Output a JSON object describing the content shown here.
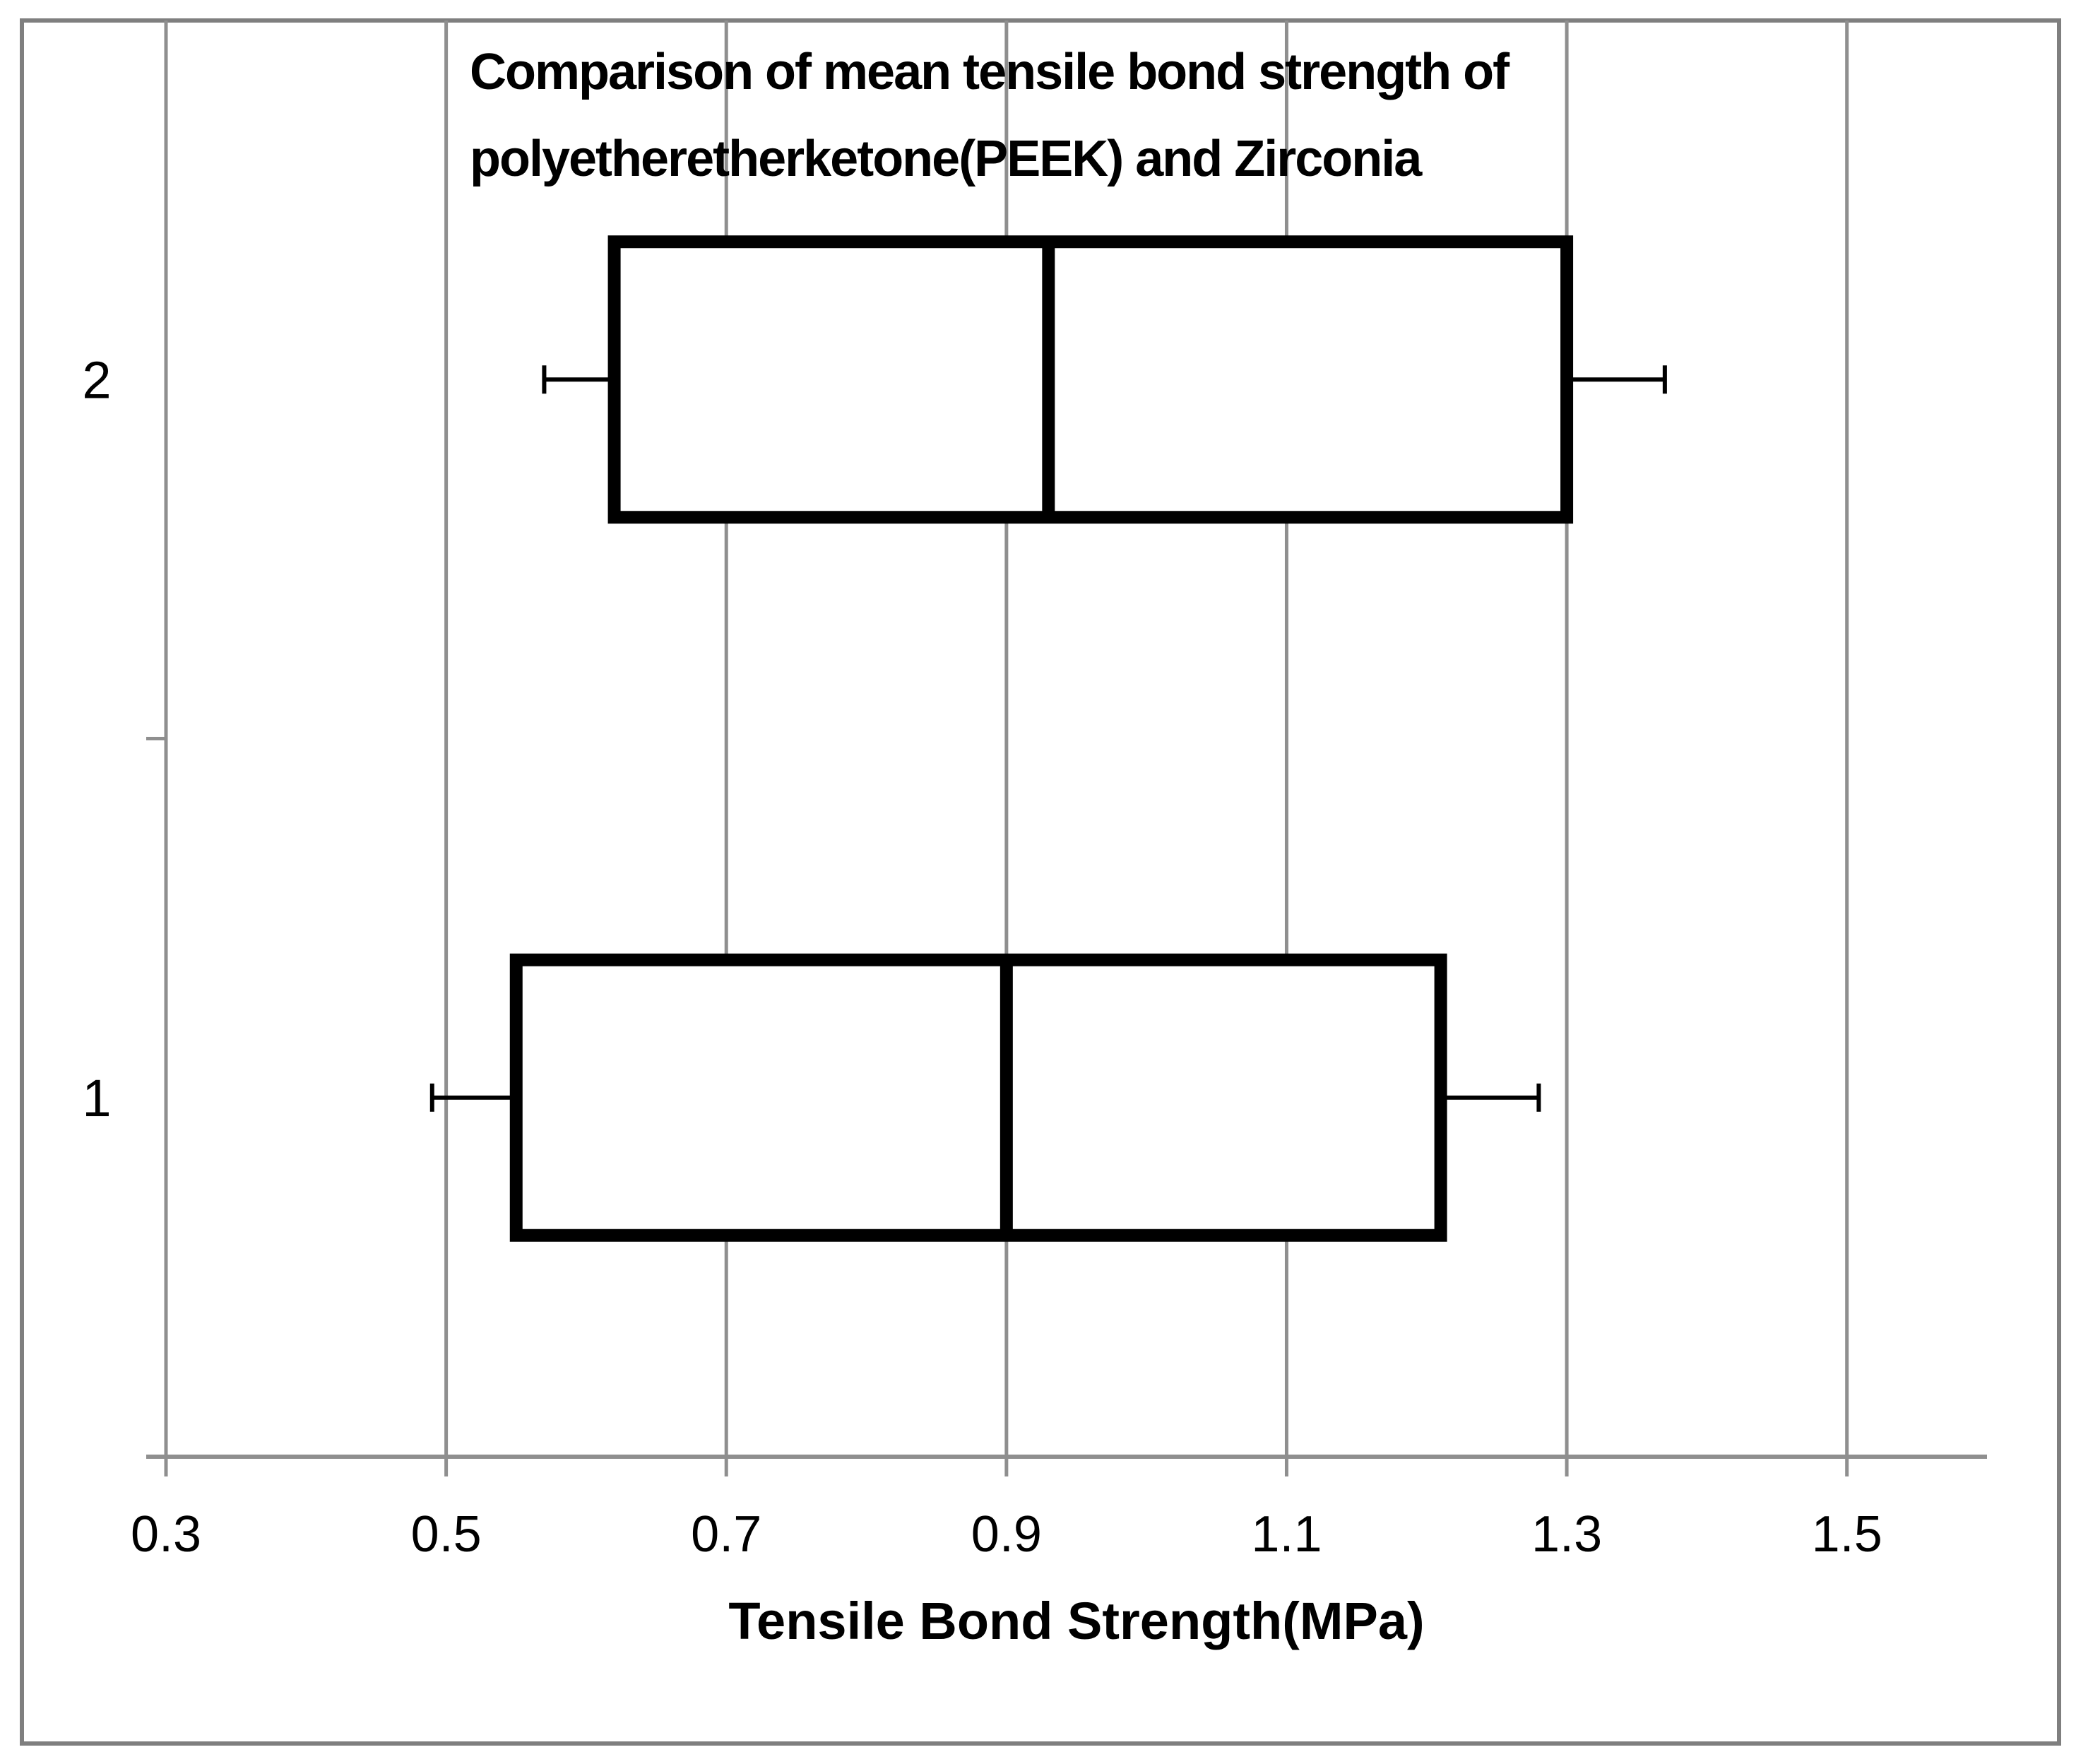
{
  "chart_data": {
    "type": "boxplot",
    "orientation": "horizontal",
    "title": "Comparison of mean tensile bond strength of polyetheretherketone(PEEK) and Zirconia",
    "title_lines": [
      "Comparison of mean tensile bond strength of",
      "polyetheretherketone(PEEK) and Zirconia"
    ],
    "xlabel": "Tensile Bond Strength(MPa)",
    "ylabel": "",
    "categories": [
      "1",
      "2"
    ],
    "series": [
      {
        "name": "1",
        "min": 0.49,
        "q1": 0.55,
        "median": 0.9,
        "q3": 1.21,
        "max": 1.28
      },
      {
        "name": "2",
        "min": 0.57,
        "q1": 0.62,
        "median": 0.93,
        "q3": 1.3,
        "max": 1.37
      }
    ],
    "xlim": [
      0.3,
      1.6
    ],
    "xticks": [
      0.3,
      0.5,
      0.7,
      0.9,
      1.1,
      1.3,
      1.5
    ],
    "xtick_labels": [
      "0.3",
      "0.5",
      "0.7",
      "0.9",
      "1.1",
      "1.3",
      "1.5"
    ],
    "grid": "vertical-major",
    "legend": "none",
    "colors": {
      "box_stroke": "#000000",
      "box_fill": "#ffffff",
      "gridline": "#8f8f8f",
      "axis": "#8f8f8f",
      "figure_border": "#7f7f7f",
      "text": "#000000"
    }
  }
}
